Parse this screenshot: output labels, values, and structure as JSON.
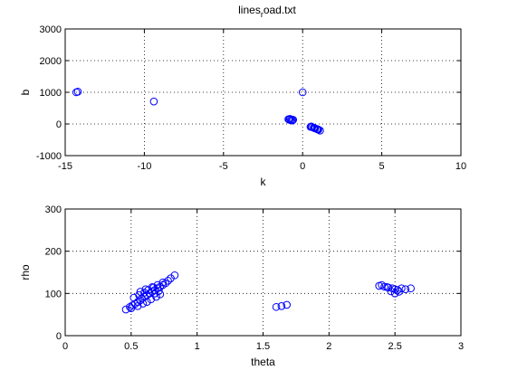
{
  "title": "lines",
  "title_sub": "r",
  "title_rest": "oad.txt",
  "colors": {
    "marker": "#0000ff",
    "axes": "#000000",
    "grid": "#000000",
    "background": "#ffffff"
  },
  "chart_data": [
    {
      "type": "scatter",
      "xlabel": "k",
      "ylabel": "b",
      "xlim": [
        -15,
        10
      ],
      "ylim": [
        -1000,
        3000
      ],
      "xticks": [
        -15,
        -10,
        -5,
        0,
        5,
        10
      ],
      "yticks": [
        -1000,
        0,
        1000,
        2000,
        3000
      ],
      "grid": true,
      "marker": "circle",
      "series": [
        {
          "x": [
            -14.2,
            -14.3,
            -9.4,
            0.0,
            -0.8,
            -0.7,
            -0.6,
            -0.9,
            -0.75,
            -0.65,
            -0.85,
            0.5,
            0.6,
            0.7,
            0.8,
            0.9,
            1.0,
            1.1,
            0.55,
            0.75,
            0.95
          ],
          "y": [
            1020,
            1000,
            710,
            1000,
            160,
            140,
            130,
            150,
            120,
            110,
            135,
            -90,
            -100,
            -120,
            -140,
            -160,
            -180,
            -210,
            -80,
            -130,
            -170
          ]
        }
      ]
    },
    {
      "type": "scatter",
      "xlabel": "theta",
      "ylabel": "rho",
      "xlim": [
        0,
        3
      ],
      "ylim": [
        0,
        300
      ],
      "xticks": [
        0,
        0.5,
        1,
        1.5,
        2,
        2.5,
        3
      ],
      "yticks": [
        0,
        100,
        200,
        300
      ],
      "grid": true,
      "marker": "circle",
      "series": [
        {
          "x": [
            0.46,
            0.49,
            0.51,
            0.53,
            0.55,
            0.57,
            0.58,
            0.6,
            0.62,
            0.64,
            0.66,
            0.68,
            0.7,
            0.72,
            0.74,
            0.76,
            0.78,
            0.8,
            0.83,
            0.52,
            0.56,
            0.6,
            0.63,
            0.67,
            0.7,
            0.74,
            0.5,
            0.55,
            0.59,
            0.62,
            0.65,
            0.69,
            0.72,
            0.57,
            0.61,
            0.66,
            0.68,
            0.71,
            1.6,
            1.64,
            1.68,
            2.38,
            2.42,
            2.45,
            2.48,
            2.5,
            2.52,
            2.55,
            2.58,
            2.62,
            2.47,
            2.5,
            2.53,
            2.4,
            2.44
          ],
          "y": [
            62,
            68,
            72,
            75,
            80,
            84,
            88,
            92,
            96,
            100,
            104,
            108,
            112,
            116,
            120,
            124,
            130,
            136,
            143,
            90,
            96,
            102,
            108,
            114,
            120,
            126,
            65,
            70,
            76,
            80,
            86,
            92,
            98,
            104,
            110,
            115,
            100,
            106,
            68,
            70,
            73,
            118,
            116,
            114,
            112,
            110,
            108,
            112,
            110,
            112,
            105,
            100,
            104,
            120,
            115
          ]
        }
      ]
    }
  ]
}
